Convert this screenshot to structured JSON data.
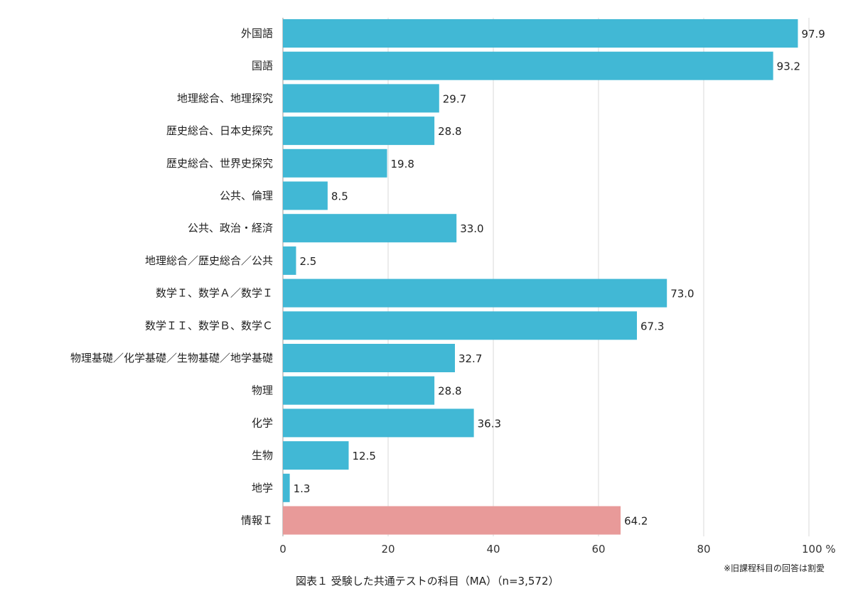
{
  "chart_data": {
    "type": "bar",
    "orientation": "horizontal",
    "title": "図表１ 受験した共通テストの科目（MA）（n=3,572）",
    "note": "※旧課程科目の回答は割愛",
    "categories": [
      "外国語",
      "国語",
      "地理総合、地理探究",
      "歴史総合、日本史探究",
      "歴史総合、世界史探究",
      "公共、倫理",
      "公共、政治・経済",
      "地理総合／歴史総合／公共",
      "数学Ｉ、数学Ａ／数学Ｉ",
      "数学ＩＩ、数学Ｂ、数学Ｃ",
      "物理基礎／化学基礎／生物基礎／地学基礎",
      "物理",
      "化学",
      "生物",
      "地学",
      "情報Ｉ"
    ],
    "values": [
      97.9,
      93.2,
      29.7,
      28.8,
      19.8,
      8.5,
      33.0,
      2.5,
      73.0,
      67.3,
      32.7,
      28.8,
      36.3,
      12.5,
      1.3,
      64.2
    ],
    "xlim": [
      0,
      100
    ],
    "xticks": [
      "0",
      "20",
      "40",
      "60",
      "80",
      "100 %"
    ],
    "xtick_values": [
      0,
      20,
      40,
      60,
      80,
      100
    ],
    "grid": true,
    "colors": {
      "default": "#41b8d5",
      "highlight": "#e89a99",
      "grid": "#d9d9d9"
    },
    "highlight_index": 15
  }
}
